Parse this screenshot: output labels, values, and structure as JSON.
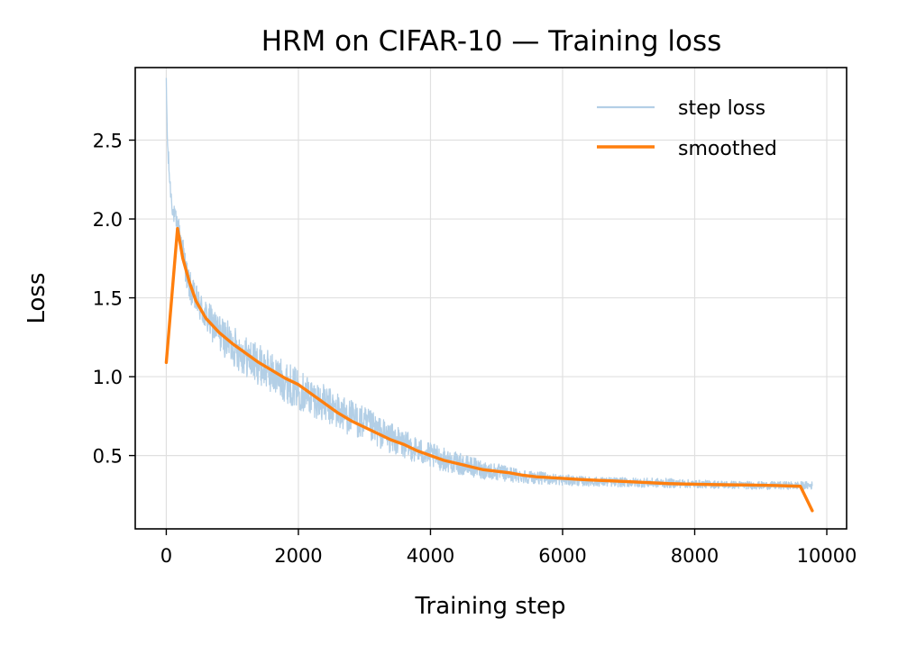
{
  "chart_data": {
    "type": "line",
    "title": "HRM on CIFAR-10 — Training loss",
    "xlabel": "Training step",
    "ylabel": "Loss",
    "xlim": [
      -470,
      10300
    ],
    "ylim": [
      0.035,
      2.96
    ],
    "xticks": [
      0,
      2000,
      4000,
      6000,
      8000,
      10000
    ],
    "xtick_labels": [
      "0",
      "2000",
      "4000",
      "6000",
      "8000",
      "10000"
    ],
    "yticks": [
      0.5,
      1.0,
      1.5,
      2.0,
      2.5
    ],
    "ytick_labels": [
      "0.5",
      "1.0",
      "1.5",
      "2.0",
      "2.5"
    ],
    "grid": true,
    "legend_position": "top-right",
    "series": [
      {
        "name": "step loss",
        "color": "#b3cfe6",
        "style": "noisy",
        "x": [
          0,
          20,
          60,
          100,
          150,
          200,
          260,
          320,
          400,
          500,
          600,
          800,
          1000,
          1200,
          1500,
          1800,
          2000,
          2300,
          2600,
          3000,
          3300,
          3600,
          4000,
          4400,
          4800,
          5200,
          5600,
          6000,
          6400,
          7000,
          7600,
          8000,
          8500,
          9000,
          9400,
          9700,
          9780
        ],
        "values": [
          2.85,
          2.45,
          2.2,
          2.05,
          1.98,
          1.92,
          1.78,
          1.62,
          1.52,
          1.45,
          1.38,
          1.28,
          1.2,
          1.13,
          1.05,
          0.97,
          0.92,
          0.85,
          0.78,
          0.7,
          0.63,
          0.57,
          0.5,
          0.45,
          0.41,
          0.38,
          0.36,
          0.345,
          0.335,
          0.33,
          0.325,
          0.32,
          0.315,
          0.31,
          0.31,
          0.31,
          0.31
        ],
        "noise": [
          0.05,
          0.08,
          0.06,
          0.06,
          0.07,
          0.08,
          0.09,
          0.1,
          0.1,
          0.1,
          0.11,
          0.12,
          0.13,
          0.13,
          0.13,
          0.13,
          0.13,
          0.12,
          0.12,
          0.11,
          0.1,
          0.09,
          0.08,
          0.07,
          0.06,
          0.05,
          0.04,
          0.035,
          0.03,
          0.03,
          0.03,
          0.025,
          0.025,
          0.025,
          0.025,
          0.025,
          0.025
        ]
      },
      {
        "name": "smoothed",
        "color": "#ff7f0e",
        "style": "solid",
        "x": [
          0,
          170,
          250,
          350,
          450,
          600,
          800,
          1000,
          1200,
          1400,
          1600,
          1800,
          2000,
          2200,
          2400,
          2600,
          2800,
          3000,
          3200,
          3400,
          3600,
          3800,
          4000,
          4200,
          4400,
          4600,
          4800,
          5000,
          5200,
          5400,
          5600,
          6000,
          6400,
          6800,
          7200,
          7600,
          8000,
          8400,
          8800,
          9200,
          9600,
          9780
        ],
        "values": [
          1.09,
          1.94,
          1.75,
          1.6,
          1.48,
          1.37,
          1.28,
          1.21,
          1.15,
          1.09,
          1.04,
          0.99,
          0.95,
          0.89,
          0.83,
          0.77,
          0.72,
          0.68,
          0.64,
          0.6,
          0.57,
          0.53,
          0.5,
          0.47,
          0.45,
          0.43,
          0.41,
          0.4,
          0.39,
          0.375,
          0.365,
          0.355,
          0.345,
          0.338,
          0.33,
          0.322,
          0.318,
          0.315,
          0.313,
          0.31,
          0.305,
          0.15
        ]
      }
    ]
  }
}
